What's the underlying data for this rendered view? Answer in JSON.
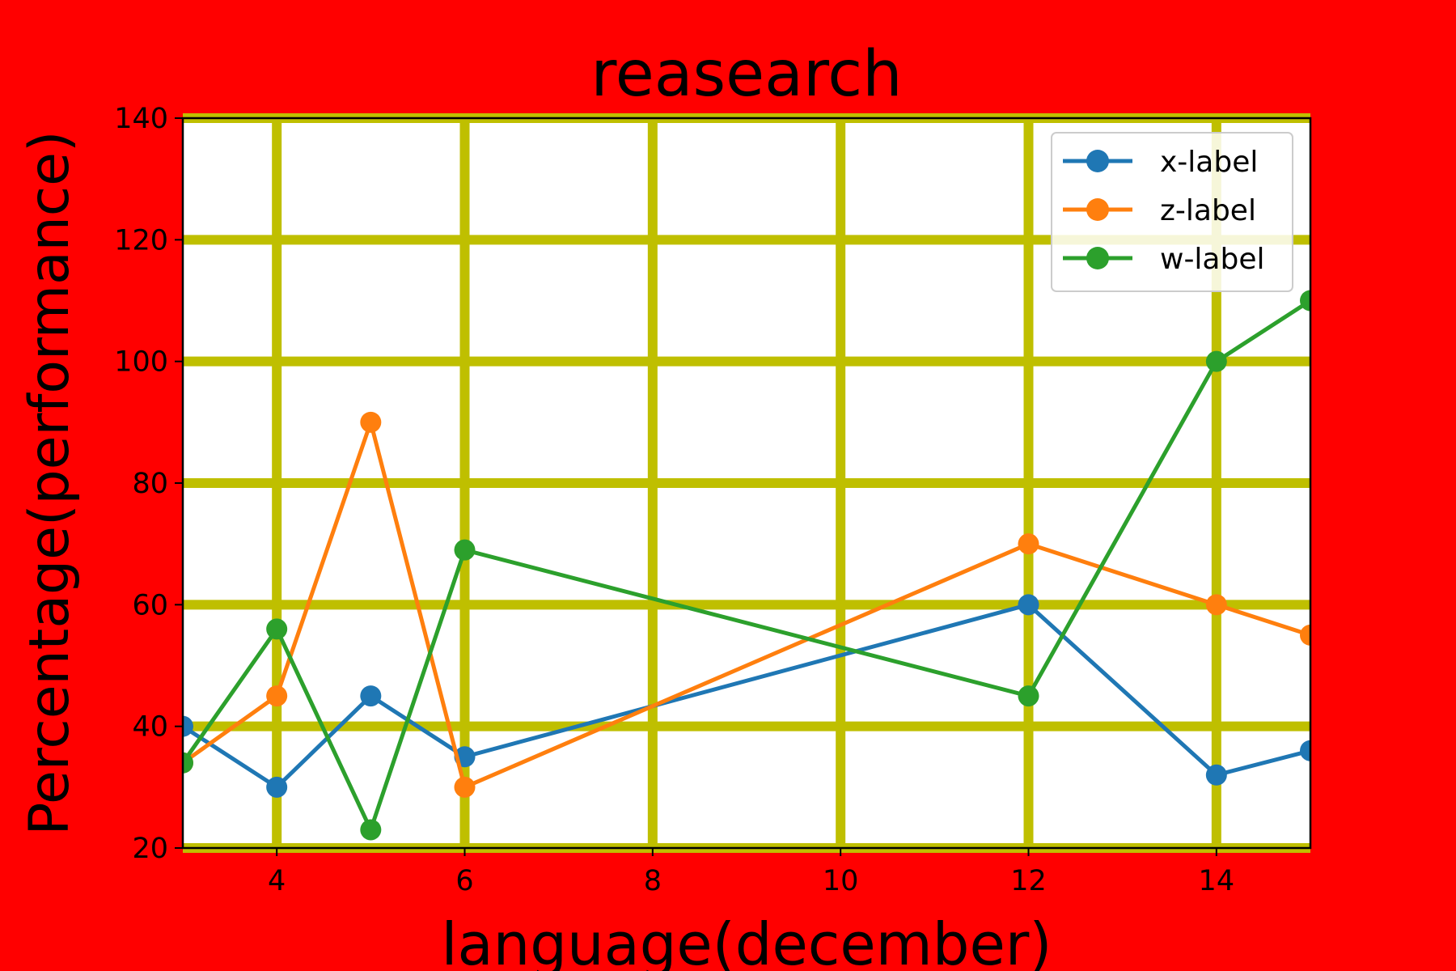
{
  "colors": {
    "background": "#ff0000",
    "plot_background": "#ffffff",
    "grid": "#bfbf00"
  },
  "chart_data": {
    "type": "line",
    "title": "reasearch",
    "xlabel": "language(december)",
    "ylabel": "Percentage(performance)",
    "xlim": [
      3,
      15
    ],
    "ylim": [
      20,
      140
    ],
    "xticks": [
      4,
      6,
      8,
      10,
      12,
      14
    ],
    "yticks": [
      20,
      40,
      60,
      80,
      100,
      120,
      140
    ],
    "grid": true,
    "legend_position": "top-right",
    "series": [
      {
        "name": "x-label",
        "color": "#1f77b4",
        "x": [
          3,
          4,
          5,
          6,
          12,
          14,
          15
        ],
        "y": [
          40,
          30,
          45,
          35,
          60,
          32,
          36
        ]
      },
      {
        "name": "z-label",
        "color": "#ff7f0e",
        "x": [
          3,
          4,
          5,
          6,
          12,
          14,
          15
        ],
        "y": [
          34,
          45,
          90,
          30,
          70,
          60,
          55
        ]
      },
      {
        "name": "w-label",
        "color": "#2ca02c",
        "x": [
          3,
          4,
          5,
          6,
          12,
          14,
          15
        ],
        "y": [
          34,
          56,
          23,
          69,
          45,
          100,
          110
        ]
      }
    ]
  }
}
